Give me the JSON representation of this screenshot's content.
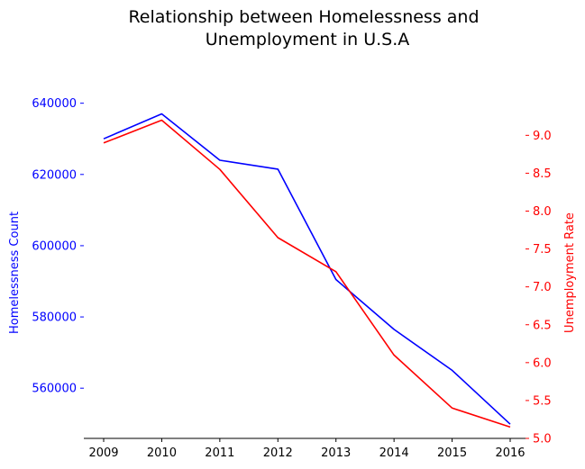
{
  "chart_data": {
    "type": "line",
    "title": "Relationship between Homelessness and Unemployment in U.S.A",
    "title_lines": [
      "Relationship between Homelessness and",
      "Unemployment in U.S.A"
    ],
    "categories": [
      "2009",
      "2010",
      "2011",
      "2012",
      "2013",
      "2014",
      "2015",
      "2016"
    ],
    "xlabel": "",
    "series": [
      {
        "name": "Homelessness Count",
        "axis": "left",
        "color": "#0000ff",
        "values": [
          630000,
          637000,
          624000,
          621500,
          590500,
          576500,
          565000,
          549900
        ]
      },
      {
        "name": "Unemployment Rate",
        "axis": "right",
        "color": "#ff0000",
        "values": [
          8.9,
          9.2,
          8.55,
          7.65,
          7.2,
          6.1,
          5.4,
          5.15
        ]
      }
    ],
    "y_left": {
      "label": "Homelessness Count",
      "color": "#0000ff",
      "ticks": [
        560000,
        580000,
        600000,
        620000,
        640000
      ],
      "tick_labels": [
        "560000",
        "580000",
        "600000",
        "620000",
        "640000"
      ],
      "range": [
        545900,
        648000
      ]
    },
    "y_right": {
      "label": "Unemployment Rate",
      "color": "#ff0000",
      "ticks": [
        5.0,
        5.5,
        6.0,
        6.5,
        7.0,
        7.5,
        8.0,
        8.5,
        9.0
      ],
      "tick_labels": [
        "5.0",
        "5.5",
        "6.0",
        "6.5",
        "7.0",
        "7.5",
        "8.0",
        "8.5",
        "9.0"
      ],
      "range": [
        5.0,
        9.8
      ]
    },
    "grid": false,
    "legend": "none"
  }
}
